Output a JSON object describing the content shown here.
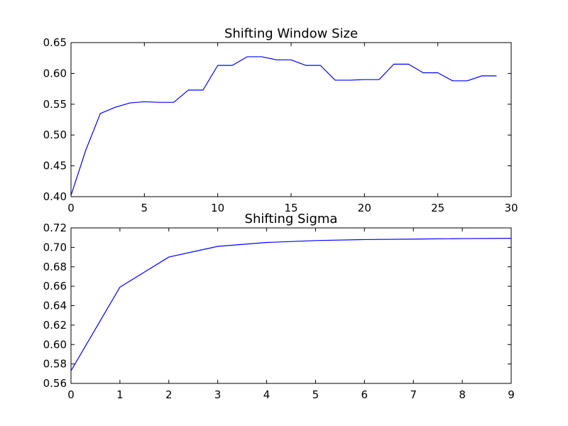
{
  "chart_data": [
    {
      "type": "line",
      "title": "Shifting Window Size",
      "xlabel": "",
      "ylabel": "",
      "xlim": [
        0,
        30
      ],
      "ylim": [
        0.4,
        0.65
      ],
      "xticks": [
        "0",
        "5",
        "10",
        "15",
        "20",
        "25",
        "30"
      ],
      "yticks": [
        "0.40",
        "0.45",
        "0.50",
        "0.55",
        "0.60",
        "0.65"
      ],
      "grid": false,
      "color": "#0000ff",
      "series": [
        {
          "x": [
            0,
            1,
            2,
            3,
            4,
            5,
            6,
            7,
            8,
            9,
            10,
            11,
            12,
            13,
            14,
            15,
            16,
            17,
            18,
            19,
            20,
            21,
            22,
            23,
            24,
            25,
            26,
            27,
            28,
            29
          ],
          "values": [
            0.402,
            0.475,
            0.535,
            0.545,
            0.552,
            0.554,
            0.553,
            0.553,
            0.573,
            0.573,
            0.613,
            0.613,
            0.627,
            0.627,
            0.622,
            0.622,
            0.613,
            0.613,
            0.589,
            0.589,
            0.59,
            0.59,
            0.615,
            0.615,
            0.601,
            0.601,
            0.588,
            0.588,
            0.596,
            0.596
          ]
        }
      ]
    },
    {
      "type": "line",
      "title": "Shifting Sigma",
      "xlabel": "",
      "ylabel": "",
      "xlim": [
        0,
        9
      ],
      "ylim": [
        0.56,
        0.72
      ],
      "xticks": [
        "0",
        "1",
        "2",
        "3",
        "4",
        "5",
        "6",
        "7",
        "8",
        "9"
      ],
      "yticks": [
        "0.56",
        "0.58",
        "0.60",
        "0.62",
        "0.64",
        "0.66",
        "0.68",
        "0.70",
        "0.72"
      ],
      "grid": false,
      "color": "#0000ff",
      "series": [
        {
          "x": [
            0,
            1,
            2,
            3,
            4,
            5,
            6,
            7,
            8,
            9
          ],
          "values": [
            0.573,
            0.659,
            0.69,
            0.701,
            0.705,
            0.707,
            0.708,
            0.7085,
            0.709,
            0.7093
          ]
        }
      ]
    }
  ]
}
